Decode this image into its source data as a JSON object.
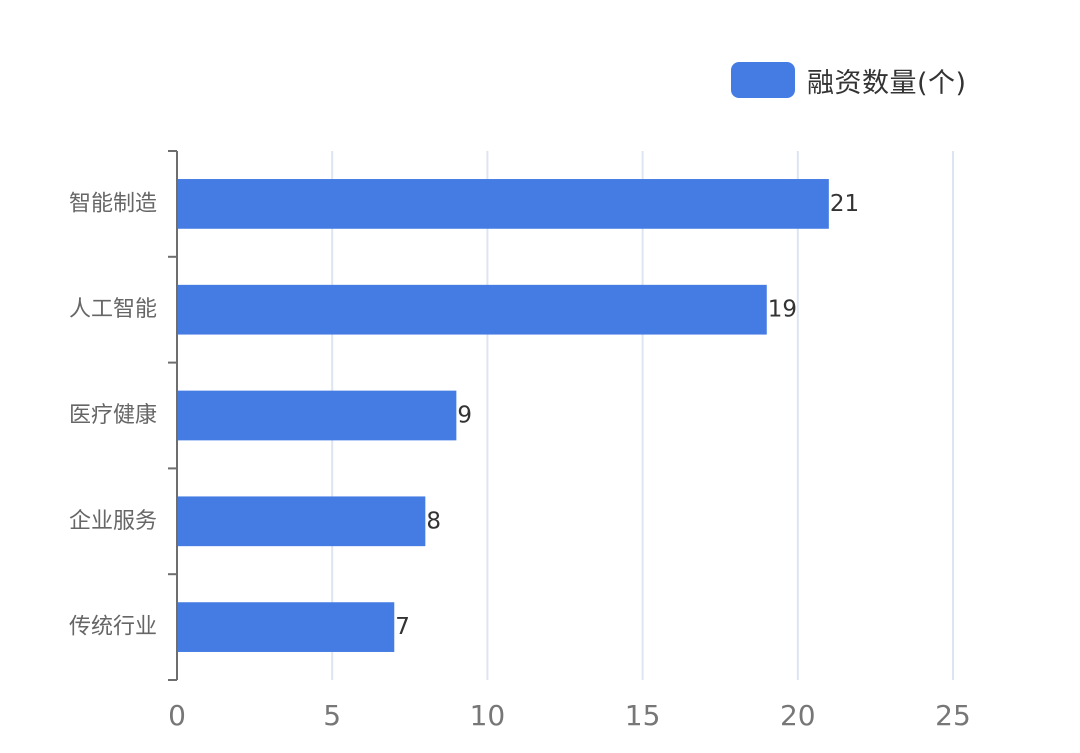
{
  "chart_data": {
    "type": "bar",
    "orientation": "horizontal",
    "categories": [
      "智能制造",
      "人工智能",
      "医疗健康",
      "企业服务",
      "传统行业"
    ],
    "series": [
      {
        "name": "融资数量(个)",
        "values": [
          21,
          19,
          9,
          8,
          7
        ]
      }
    ],
    "xlim": [
      0,
      25
    ],
    "xticks": [
      0,
      5,
      10,
      15,
      20,
      25
    ],
    "grid": true,
    "legend_position": "top-right",
    "data_labels": true,
    "bar_color": "#447ce4",
    "grid_color": "#dde5f0",
    "axis_color": "#6e6e6e"
  }
}
